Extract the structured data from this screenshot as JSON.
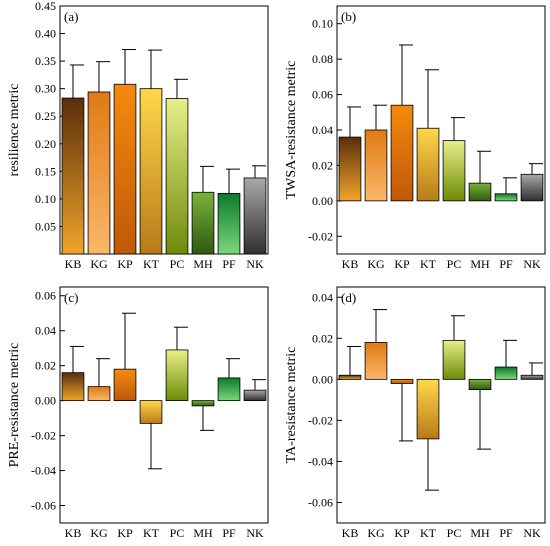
{
  "chart_data": [
    {
      "type": "bar",
      "panel_tag": "(a)",
      "ylabel": "resilience metric",
      "ylim": [
        0.0,
        0.45
      ],
      "yticks": [
        "0.05",
        "0.10",
        "0.15",
        "0.20",
        "0.25",
        "0.30",
        "0.35",
        "0.40",
        "0.45"
      ],
      "categories": [
        "KB",
        "KG",
        "KP",
        "KT",
        "PC",
        "MH",
        "PF",
        "NK"
      ],
      "values": [
        0.283,
        0.294,
        0.308,
        0.3,
        0.282,
        0.112,
        0.11,
        0.138
      ],
      "error": [
        0.06,
        0.055,
        0.063,
        0.07,
        0.035,
        0.047,
        0.044,
        0.022
      ],
      "grid": false
    },
    {
      "type": "bar",
      "panel_tag": "(b)",
      "ylabel": "TWSA-resistance metric",
      "ylim": [
        -0.03,
        0.11
      ],
      "yticks": [
        "-0.02",
        "0.00",
        "0.02",
        "0.04",
        "0.06",
        "0.08",
        "0.10"
      ],
      "categories": [
        "KB",
        "KG",
        "KP",
        "KT",
        "PC",
        "MH",
        "PF",
        "NK"
      ],
      "values": [
        0.036,
        0.04,
        0.054,
        0.041,
        0.034,
        0.01,
        0.004,
        0.015
      ],
      "error": [
        0.017,
        0.014,
        0.034,
        0.033,
        0.013,
        0.018,
        0.009,
        0.006
      ],
      "grid": false
    },
    {
      "type": "bar",
      "panel_tag": "(c)",
      "ylabel": "PRE-resistance metric",
      "ylim": [
        -0.07,
        0.065
      ],
      "yticks": [
        "-0.06",
        "-0.04",
        "-0.02",
        "0.00",
        "0.02",
        "0.04",
        "0.06"
      ],
      "categories": [
        "KB",
        "KG",
        "KP",
        "KT",
        "PC",
        "MH",
        "PF",
        "NK"
      ],
      "values": [
        0.016,
        0.008,
        0.018,
        -0.013,
        0.029,
        -0.003,
        0.013,
        0.006
      ],
      "error": [
        0.015,
        0.016,
        0.032,
        0.026,
        0.013,
        0.014,
        0.011,
        0.006
      ],
      "grid": false
    },
    {
      "type": "bar",
      "panel_tag": "(d)",
      "ylabel": "TA-resistance metric",
      "ylim": [
        -0.07,
        0.045
      ],
      "yticks": [
        "-0.06",
        "-0.04",
        "-0.02",
        "0.00",
        "0.02",
        "0.04"
      ],
      "categories": [
        "KB",
        "KG",
        "KP",
        "KT",
        "PC",
        "MH",
        "PF",
        "NK"
      ],
      "values": [
        0.002,
        0.018,
        -0.002,
        -0.029,
        0.019,
        -0.005,
        0.006,
        0.002
      ],
      "error": [
        0.014,
        0.016,
        0.028,
        0.025,
        0.012,
        0.029,
        0.013,
        0.006
      ],
      "grid": false
    }
  ],
  "bar_gradients": {
    "KB": [
      "#5a2e0a",
      "#f0a42a"
    ],
    "KG": [
      "#e07a15",
      "#fbb76a"
    ],
    "KP": [
      "#f58a0c",
      "#c0580a"
    ],
    "KT": [
      "#ffd84a",
      "#b87a18"
    ],
    "PC": [
      "#e8ef8a",
      "#6e8a08"
    ],
    "MH": [
      "#7ab23a",
      "#2e5a10"
    ],
    "PF": [
      "#0e7a2a",
      "#7ad87a"
    ],
    "NK": [
      "#a8a8a8",
      "#303030"
    ]
  }
}
